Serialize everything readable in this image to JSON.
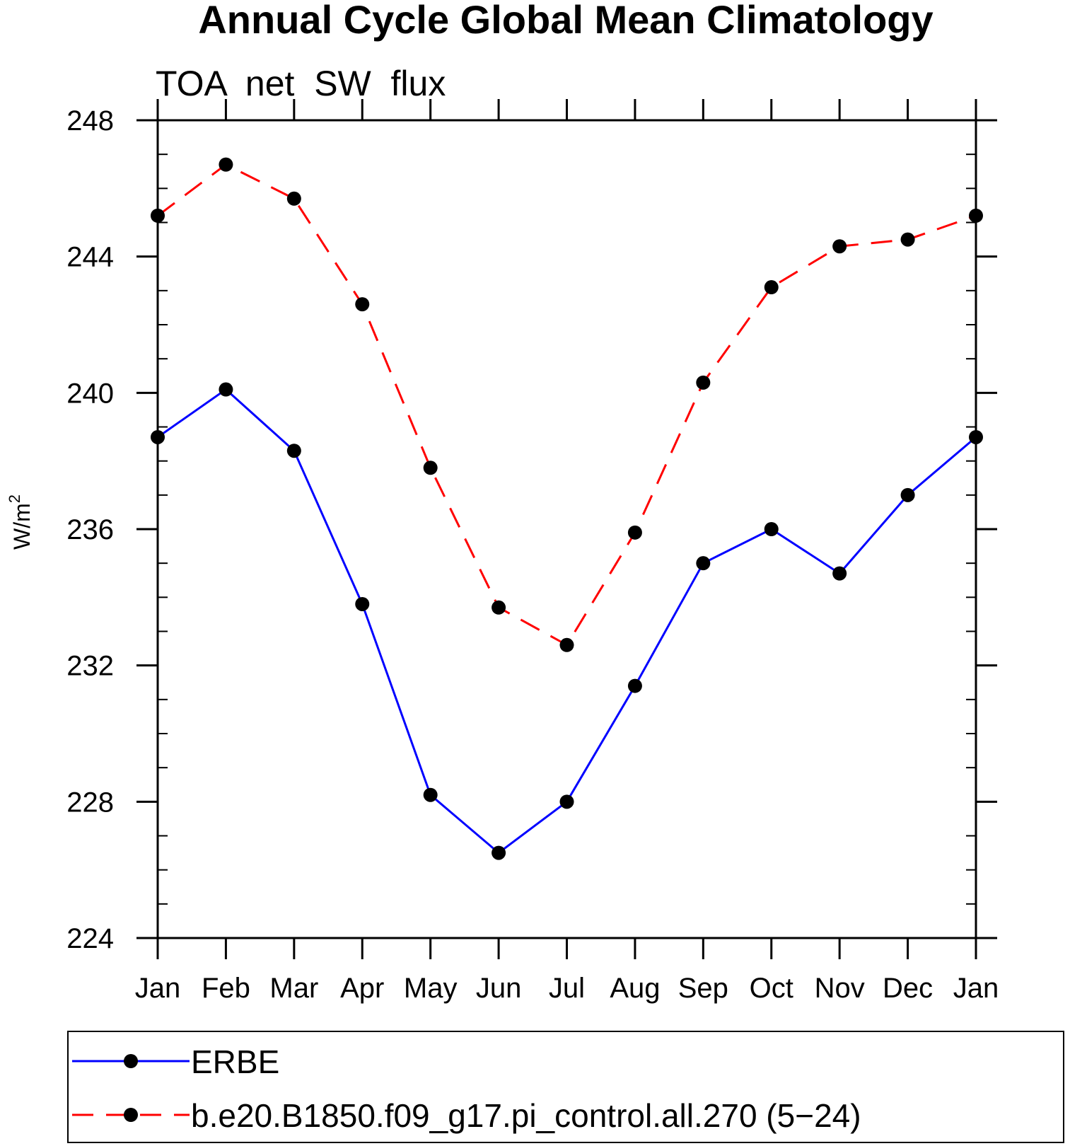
{
  "chart_data": {
    "type": "line",
    "title": "Annual Cycle Global Mean Climatology",
    "subtitle": "TOA  net  SW  flux",
    "xlabel": "",
    "ylabel": "W/m",
    "ylabel_superscript": "2",
    "categories": [
      "Jan",
      "Feb",
      "Mar",
      "Apr",
      "May",
      "Jun",
      "Jul",
      "Aug",
      "Sep",
      "Oct",
      "Nov",
      "Dec",
      "Jan"
    ],
    "ylim": [
      224,
      248
    ],
    "yticks": [
      224,
      228,
      232,
      236,
      240,
      244,
      248
    ],
    "yminor_step": 1,
    "series": [
      {
        "name": "ERBE",
        "color": "#0000ff",
        "style": "solid",
        "values": [
          238.7,
          240.1,
          238.3,
          233.8,
          228.2,
          226.5,
          228.0,
          231.4,
          235.0,
          236.0,
          234.7,
          237.0,
          238.7
        ]
      },
      {
        "name": "b.e20.B1850.f09_g17.pi_control.all.270 (5−24)",
        "color": "#ff0000",
        "style": "dashed",
        "values": [
          245.2,
          246.7,
          245.7,
          242.6,
          237.8,
          233.7,
          232.6,
          235.9,
          240.3,
          243.1,
          244.3,
          244.5,
          245.2
        ]
      }
    ],
    "marker_color": "#000000",
    "legend_position": "bottom"
  }
}
